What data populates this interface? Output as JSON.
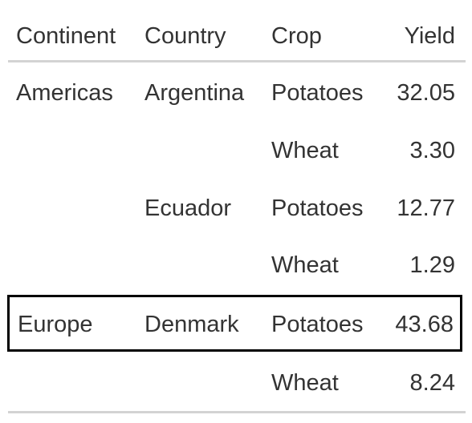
{
  "table": {
    "headers": {
      "continent": "Continent",
      "country": "Country",
      "crop": "Crop",
      "yield": "Yield"
    },
    "rows": [
      {
        "continent": "Americas",
        "country": "Argentina",
        "crop": "Potatoes",
        "yield": "32.05"
      },
      {
        "continent": "",
        "country": "",
        "crop": "Wheat",
        "yield": "3.30"
      },
      {
        "continent": "",
        "country": "Ecuador",
        "crop": "Potatoes",
        "yield": "12.77"
      },
      {
        "continent": "",
        "country": "",
        "crop": "Wheat",
        "yield": "1.29"
      },
      {
        "continent": "Europe",
        "country": "Denmark",
        "crop": "Potatoes",
        "yield": "43.68"
      },
      {
        "continent": "",
        "country": "",
        "crop": "Wheat",
        "yield": "8.24"
      }
    ],
    "highlighted_row_index": 4,
    "colors": {
      "text": "#333333",
      "rule": "#d3d3d3",
      "highlight_border": "#000000"
    }
  }
}
